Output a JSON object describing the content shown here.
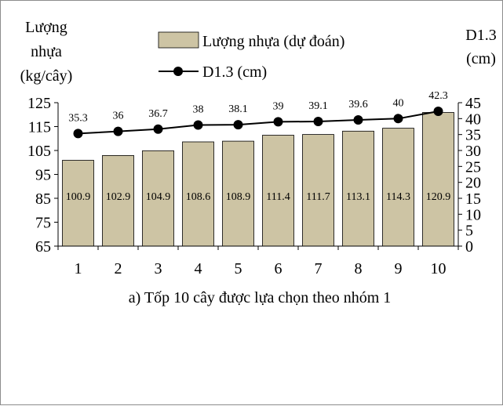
{
  "chart_data": {
    "type": "bar",
    "categories": [
      "1",
      "2",
      "3",
      "4",
      "5",
      "6",
      "7",
      "8",
      "9",
      "10"
    ],
    "series": [
      {
        "name": "Lượng nhựa (dự đoán)",
        "type": "bar",
        "axis": "left",
        "color": "#cdc4a4",
        "values": [
          100.9,
          102.9,
          104.9,
          108.6,
          108.9,
          111.4,
          111.7,
          113.1,
          114.3,
          120.9
        ]
      },
      {
        "name": "D1.3 (cm)",
        "type": "line",
        "axis": "right",
        "color": "#000000",
        "values": [
          35.3,
          36,
          36.7,
          38,
          38.1,
          39,
          39.1,
          39.6,
          40,
          42.3
        ]
      }
    ],
    "ylabel_left_lines": [
      "Lượng",
      "nhựa",
      "(kg/cây)"
    ],
    "ylabel_right_lines": [
      "D1.3",
      "(cm)"
    ],
    "ylim_left": [
      65,
      125
    ],
    "yticks_left": [
      65,
      75,
      85,
      95,
      105,
      115,
      125
    ],
    "ylim_right": [
      0,
      45
    ],
    "yticks_right": [
      0,
      5,
      10,
      15,
      20,
      25,
      30,
      35,
      40,
      45
    ],
    "caption": "a) Tốp 10 cây được lựa chọn theo nhóm 1",
    "legend_position": "top-center",
    "grid": false
  }
}
